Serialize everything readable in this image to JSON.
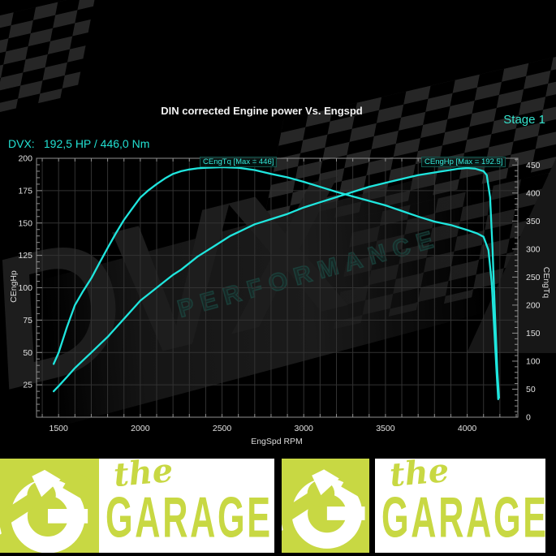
{
  "header": {
    "title": "DIN corrected Engine power Vs. Engspd",
    "stage": "Stage 1",
    "result_label": "DVX:",
    "result_value": "192,5 HP / 446,0 Nm"
  },
  "watermark": {
    "brand": "DVX",
    "subtitle": "PERFORMANCE"
  },
  "colors": {
    "accent_cyan": "#22e0d2",
    "curve_cyan": "#1fe6de",
    "lime": "#c8d843",
    "grid": "#323232",
    "axis": "#8f8f8f",
    "tick_text": "#e0e0e0"
  },
  "chart_data": {
    "type": "line",
    "title": "DIN corrected Engine power Vs. Engspd",
    "xlabel": "EngSpd RPM",
    "ylabel_left": "CEngHp",
    "ylabel_right": "CEngTq",
    "x_range": [
      1365,
      4310
    ],
    "y_left_range": [
      0,
      200
    ],
    "y_right_range": [
      0,
      462
    ],
    "x_ticks": [
      1500,
      2000,
      2500,
      3000,
      3500,
      4000
    ],
    "y_left_ticks": [
      25,
      50,
      75,
      100,
      125,
      150,
      175,
      200
    ],
    "y_right_ticks": [
      0,
      50,
      100,
      150,
      200,
      250,
      300,
      350,
      400,
      450
    ],
    "x_minor_step": 100,
    "grid": true,
    "legend_position": "inline-labels",
    "grid_color": "#323232",
    "axis_color": "#8f8f8f",
    "tick_color": "#e0e0e0",
    "line_color": "#1fe6de",
    "series": [
      {
        "name": "CEngTq",
        "axis": "right",
        "unit": "Nm",
        "max": 446,
        "label": "CEngTq [Max = 446]",
        "points": [
          [
            1470,
            95
          ],
          [
            1500,
            115
          ],
          [
            1550,
            160
          ],
          [
            1600,
            200
          ],
          [
            1650,
            225
          ],
          [
            1700,
            248
          ],
          [
            1750,
            275
          ],
          [
            1800,
            302
          ],
          [
            1850,
            328
          ],
          [
            1900,
            352
          ],
          [
            1950,
            372
          ],
          [
            2000,
            392
          ],
          [
            2050,
            405
          ],
          [
            2100,
            416
          ],
          [
            2150,
            426
          ],
          [
            2200,
            434
          ],
          [
            2250,
            439
          ],
          [
            2300,
            442
          ],
          [
            2350,
            444
          ],
          [
            2400,
            445
          ],
          [
            2500,
            446
          ],
          [
            2600,
            445
          ],
          [
            2700,
            441
          ],
          [
            2800,
            434
          ],
          [
            2900,
            428
          ],
          [
            3000,
            420
          ],
          [
            3100,
            411
          ],
          [
            3200,
            402
          ],
          [
            3300,
            394
          ],
          [
            3400,
            386
          ],
          [
            3500,
            378
          ],
          [
            3600,
            368
          ],
          [
            3700,
            358
          ],
          [
            3800,
            349
          ],
          [
            3900,
            343
          ],
          [
            4000,
            334
          ],
          [
            4060,
            328
          ],
          [
            4100,
            322
          ],
          [
            4130,
            298
          ],
          [
            4150,
            240
          ],
          [
            4165,
            160
          ],
          [
            4180,
            80
          ],
          [
            4190,
            32
          ]
        ]
      },
      {
        "name": "CEngHp",
        "axis": "left",
        "unit": "HP",
        "max": 192.5,
        "label": "CEngHp [Max = 192.5]",
        "points": [
          [
            1470,
            20
          ],
          [
            1500,
            24
          ],
          [
            1550,
            31
          ],
          [
            1600,
            38
          ],
          [
            1650,
            44
          ],
          [
            1700,
            50
          ],
          [
            1750,
            56
          ],
          [
            1800,
            62
          ],
          [
            1850,
            69
          ],
          [
            1900,
            76
          ],
          [
            1950,
            83
          ],
          [
            2000,
            90
          ],
          [
            2050,
            95
          ],
          [
            2100,
            100
          ],
          [
            2150,
            105
          ],
          [
            2200,
            110
          ],
          [
            2250,
            114
          ],
          [
            2300,
            119
          ],
          [
            2350,
            124
          ],
          [
            2400,
            128
          ],
          [
            2450,
            132
          ],
          [
            2500,
            136
          ],
          [
            2550,
            140
          ],
          [
            2600,
            143
          ],
          [
            2650,
            146
          ],
          [
            2700,
            149
          ],
          [
            2750,
            151
          ],
          [
            2800,
            153
          ],
          [
            2900,
            157
          ],
          [
            3000,
            162
          ],
          [
            3100,
            166
          ],
          [
            3200,
            170
          ],
          [
            3300,
            174
          ],
          [
            3400,
            178
          ],
          [
            3500,
            181
          ],
          [
            3600,
            184
          ],
          [
            3700,
            187
          ],
          [
            3800,
            189
          ],
          [
            3900,
            191
          ],
          [
            3950,
            192
          ],
          [
            4000,
            192.5
          ],
          [
            4050,
            192
          ],
          [
            4100,
            190
          ],
          [
            4120,
            187
          ],
          [
            4140,
            170
          ],
          [
            4155,
            130
          ],
          [
            4170,
            80
          ],
          [
            4185,
            35
          ],
          [
            4195,
            15
          ]
        ]
      }
    ]
  },
  "footer": {
    "logos": [
      {
        "script": "the",
        "word": "GARAGE"
      },
      {
        "script": "the",
        "word": "GARAGE"
      }
    ]
  }
}
